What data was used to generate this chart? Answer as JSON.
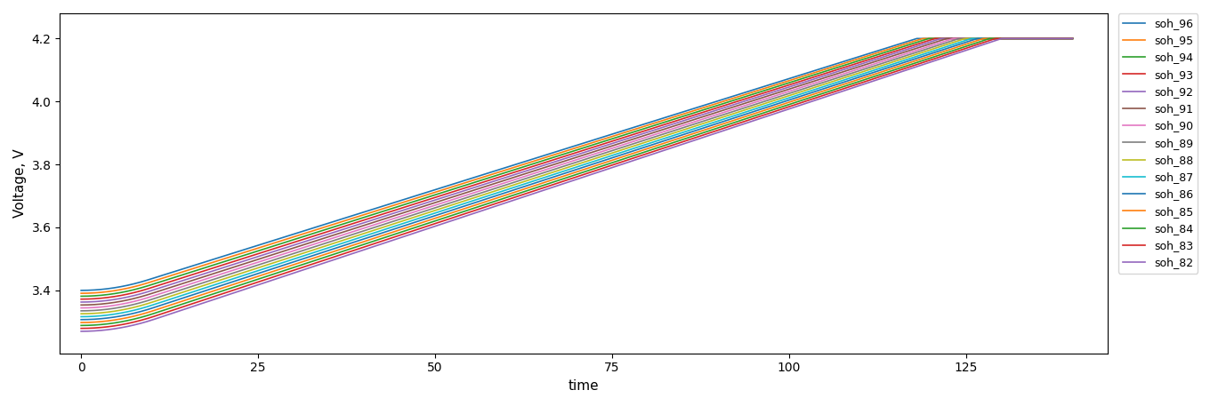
{
  "soh_values": [
    96,
    95,
    94,
    93,
    92,
    91,
    90,
    89,
    88,
    87,
    86,
    85,
    84,
    83,
    82
  ],
  "colors": {
    "96": "#1f77b4",
    "95": "#ff7f0e",
    "94": "#2ca02c",
    "93": "#d62728",
    "92": "#9467bd",
    "91": "#8c564b",
    "90": "#e377c2",
    "89": "#7f7f7f",
    "88": "#bcbd22",
    "87": "#17becf",
    "86": "#1f77b4",
    "85": "#ff7f0e",
    "84": "#2ca02c",
    "83": "#d62728",
    "82": "#9467bd"
  },
  "xlabel": "time",
  "ylabel": "Voltage, V",
  "ylim": [
    3.2,
    4.28
  ],
  "xlim": [
    -3,
    145
  ],
  "yticks": [
    3.4,
    3.6,
    3.8,
    4.0,
    4.2
  ],
  "xticks": [
    0,
    25,
    50,
    75,
    100,
    125
  ],
  "v_plateau": 4.2,
  "v_start_soh96": 3.4,
  "v_start_soh82": 3.27,
  "t_plateau_soh96": 118,
  "t_plateau_soh82": 130,
  "t_end": 140,
  "figsize": [
    13.6,
    4.57
  ],
  "dpi": 100
}
